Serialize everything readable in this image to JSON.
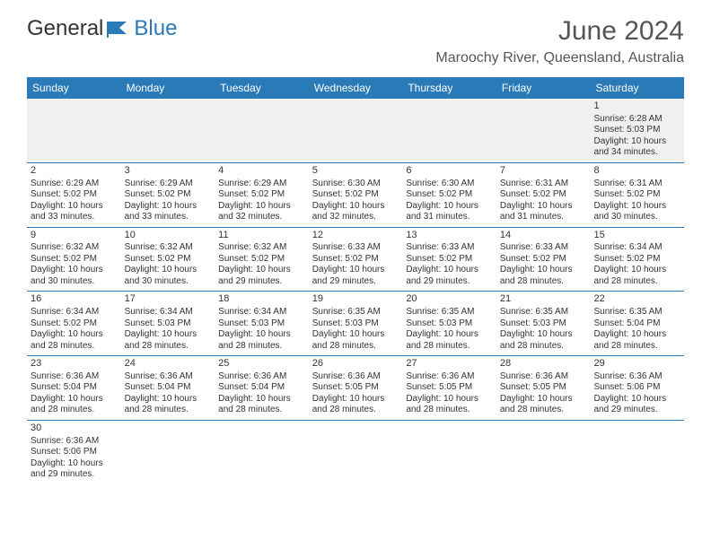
{
  "brand": {
    "part1": "General",
    "part2": "Blue"
  },
  "title": "June 2024",
  "location": "Maroochy River, Queensland, Australia",
  "dayNames": [
    "Sunday",
    "Monday",
    "Tuesday",
    "Wednesday",
    "Thursday",
    "Friday",
    "Saturday"
  ],
  "colors": {
    "header_bg": "#2a7ab8",
    "header_text": "#ffffff",
    "row_alt_bg": "#f0f0f0",
    "border": "#2a7ab8",
    "text": "#333333"
  },
  "weeks": [
    [
      null,
      null,
      null,
      null,
      null,
      null,
      {
        "n": "1",
        "sr": "Sunrise: 6:28 AM",
        "ss": "Sunset: 5:03 PM",
        "d1": "Daylight: 10 hours",
        "d2": "and 34 minutes."
      }
    ],
    [
      {
        "n": "2",
        "sr": "Sunrise: 6:29 AM",
        "ss": "Sunset: 5:02 PM",
        "d1": "Daylight: 10 hours",
        "d2": "and 33 minutes."
      },
      {
        "n": "3",
        "sr": "Sunrise: 6:29 AM",
        "ss": "Sunset: 5:02 PM",
        "d1": "Daylight: 10 hours",
        "d2": "and 33 minutes."
      },
      {
        "n": "4",
        "sr": "Sunrise: 6:29 AM",
        "ss": "Sunset: 5:02 PM",
        "d1": "Daylight: 10 hours",
        "d2": "and 32 minutes."
      },
      {
        "n": "5",
        "sr": "Sunrise: 6:30 AM",
        "ss": "Sunset: 5:02 PM",
        "d1": "Daylight: 10 hours",
        "d2": "and 32 minutes."
      },
      {
        "n": "6",
        "sr": "Sunrise: 6:30 AM",
        "ss": "Sunset: 5:02 PM",
        "d1": "Daylight: 10 hours",
        "d2": "and 31 minutes."
      },
      {
        "n": "7",
        "sr": "Sunrise: 6:31 AM",
        "ss": "Sunset: 5:02 PM",
        "d1": "Daylight: 10 hours",
        "d2": "and 31 minutes."
      },
      {
        "n": "8",
        "sr": "Sunrise: 6:31 AM",
        "ss": "Sunset: 5:02 PM",
        "d1": "Daylight: 10 hours",
        "d2": "and 30 minutes."
      }
    ],
    [
      {
        "n": "9",
        "sr": "Sunrise: 6:32 AM",
        "ss": "Sunset: 5:02 PM",
        "d1": "Daylight: 10 hours",
        "d2": "and 30 minutes."
      },
      {
        "n": "10",
        "sr": "Sunrise: 6:32 AM",
        "ss": "Sunset: 5:02 PM",
        "d1": "Daylight: 10 hours",
        "d2": "and 30 minutes."
      },
      {
        "n": "11",
        "sr": "Sunrise: 6:32 AM",
        "ss": "Sunset: 5:02 PM",
        "d1": "Daylight: 10 hours",
        "d2": "and 29 minutes."
      },
      {
        "n": "12",
        "sr": "Sunrise: 6:33 AM",
        "ss": "Sunset: 5:02 PM",
        "d1": "Daylight: 10 hours",
        "d2": "and 29 minutes."
      },
      {
        "n": "13",
        "sr": "Sunrise: 6:33 AM",
        "ss": "Sunset: 5:02 PM",
        "d1": "Daylight: 10 hours",
        "d2": "and 29 minutes."
      },
      {
        "n": "14",
        "sr": "Sunrise: 6:33 AM",
        "ss": "Sunset: 5:02 PM",
        "d1": "Daylight: 10 hours",
        "d2": "and 28 minutes."
      },
      {
        "n": "15",
        "sr": "Sunrise: 6:34 AM",
        "ss": "Sunset: 5:02 PM",
        "d1": "Daylight: 10 hours",
        "d2": "and 28 minutes."
      }
    ],
    [
      {
        "n": "16",
        "sr": "Sunrise: 6:34 AM",
        "ss": "Sunset: 5:02 PM",
        "d1": "Daylight: 10 hours",
        "d2": "and 28 minutes."
      },
      {
        "n": "17",
        "sr": "Sunrise: 6:34 AM",
        "ss": "Sunset: 5:03 PM",
        "d1": "Daylight: 10 hours",
        "d2": "and 28 minutes."
      },
      {
        "n": "18",
        "sr": "Sunrise: 6:34 AM",
        "ss": "Sunset: 5:03 PM",
        "d1": "Daylight: 10 hours",
        "d2": "and 28 minutes."
      },
      {
        "n": "19",
        "sr": "Sunrise: 6:35 AM",
        "ss": "Sunset: 5:03 PM",
        "d1": "Daylight: 10 hours",
        "d2": "and 28 minutes."
      },
      {
        "n": "20",
        "sr": "Sunrise: 6:35 AM",
        "ss": "Sunset: 5:03 PM",
        "d1": "Daylight: 10 hours",
        "d2": "and 28 minutes."
      },
      {
        "n": "21",
        "sr": "Sunrise: 6:35 AM",
        "ss": "Sunset: 5:03 PM",
        "d1": "Daylight: 10 hours",
        "d2": "and 28 minutes."
      },
      {
        "n": "22",
        "sr": "Sunrise: 6:35 AM",
        "ss": "Sunset: 5:04 PM",
        "d1": "Daylight: 10 hours",
        "d2": "and 28 minutes."
      }
    ],
    [
      {
        "n": "23",
        "sr": "Sunrise: 6:36 AM",
        "ss": "Sunset: 5:04 PM",
        "d1": "Daylight: 10 hours",
        "d2": "and 28 minutes."
      },
      {
        "n": "24",
        "sr": "Sunrise: 6:36 AM",
        "ss": "Sunset: 5:04 PM",
        "d1": "Daylight: 10 hours",
        "d2": "and 28 minutes."
      },
      {
        "n": "25",
        "sr": "Sunrise: 6:36 AM",
        "ss": "Sunset: 5:04 PM",
        "d1": "Daylight: 10 hours",
        "d2": "and 28 minutes."
      },
      {
        "n": "26",
        "sr": "Sunrise: 6:36 AM",
        "ss": "Sunset: 5:05 PM",
        "d1": "Daylight: 10 hours",
        "d2": "and 28 minutes."
      },
      {
        "n": "27",
        "sr": "Sunrise: 6:36 AM",
        "ss": "Sunset: 5:05 PM",
        "d1": "Daylight: 10 hours",
        "d2": "and 28 minutes."
      },
      {
        "n": "28",
        "sr": "Sunrise: 6:36 AM",
        "ss": "Sunset: 5:05 PM",
        "d1": "Daylight: 10 hours",
        "d2": "and 28 minutes."
      },
      {
        "n": "29",
        "sr": "Sunrise: 6:36 AM",
        "ss": "Sunset: 5:06 PM",
        "d1": "Daylight: 10 hours",
        "d2": "and 29 minutes."
      }
    ],
    [
      {
        "n": "30",
        "sr": "Sunrise: 6:36 AM",
        "ss": "Sunset: 5:06 PM",
        "d1": "Daylight: 10 hours",
        "d2": "and 29 minutes."
      },
      null,
      null,
      null,
      null,
      null,
      null
    ]
  ]
}
